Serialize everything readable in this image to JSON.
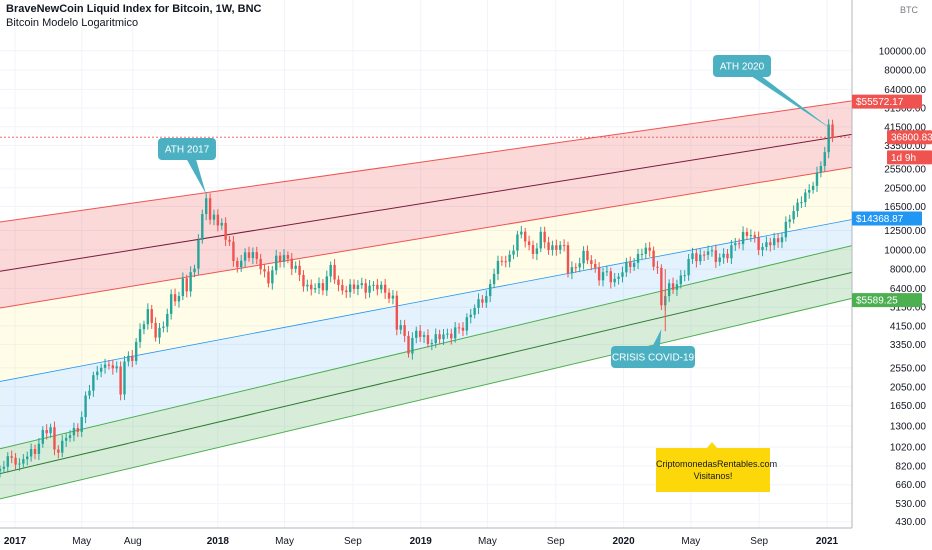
{
  "header": {
    "title": "BraveNewCoin Liquid Index for Bitcoin, 1W, BNC",
    "indicator": "Bitcoin Modelo Logaritmico",
    "currency": "BTC"
  },
  "chart_data": {
    "type": "candlestick",
    "title": "BraveNewCoin Liquid Index for Bitcoin, 1W, BNC",
    "scale": "log",
    "ylim": [
      400,
      180000
    ],
    "xlim": [
      "2016-12-05",
      "2021-02-15"
    ],
    "y_ticks": [
      100000,
      80000,
      64000,
      51500,
      41500,
      33500,
      25500,
      20500,
      16500,
      12500,
      10000,
      8000,
      6400,
      5150,
      4150,
      3350,
      2550,
      2050,
      1650,
      1300,
      1020,
      820,
      660,
      530,
      430
    ],
    "y_tick_labels": [
      "100000.00",
      "80000.00",
      "64000.00",
      "51500.00",
      "41500.00",
      "33500.00",
      "25500.00",
      "20500.00",
      "16500.00",
      "12500.00",
      "10000.00",
      "8000.00",
      "6400.00",
      "5150.00",
      "4150.00",
      "3350.00",
      "2550.00",
      "2050.00",
      "1650.00",
      "1300.00",
      "1020.00",
      "820.00",
      "660.00",
      "530.00",
      "430.00"
    ],
    "x_ticks": [
      {
        "label": "2017",
        "date": "2017-01-01",
        "major": true
      },
      {
        "label": "May",
        "date": "2017-05-01",
        "major": false
      },
      {
        "label": "Aug",
        "date": "2017-08-01",
        "major": false
      },
      {
        "label": "2018",
        "date": "2018-01-01",
        "major": true
      },
      {
        "label": "May",
        "date": "2018-05-01",
        "major": false
      },
      {
        "label": "Sep",
        "date": "2018-09-01",
        "major": false
      },
      {
        "label": "2019",
        "date": "2019-01-01",
        "major": true
      },
      {
        "label": "May",
        "date": "2019-05-01",
        "major": false
      },
      {
        "label": "Sep",
        "date": "2019-09-01",
        "major": false
      },
      {
        "label": "2020",
        "date": "2020-01-01",
        "major": true
      },
      {
        "label": "May",
        "date": "2020-05-01",
        "major": false
      },
      {
        "label": "Sep",
        "date": "2020-09-01",
        "major": false
      },
      {
        "label": "2021",
        "date": "2021-01-01",
        "major": true
      }
    ],
    "candles": [
      [
        "2016-12-05",
        760
      ],
      [
        "2016-12-19",
        890
      ],
      [
        "2017-01-02",
        900
      ],
      [
        "2017-01-09",
        820
      ],
      [
        "2017-01-23",
        920
      ],
      [
        "2017-02-06",
        1000
      ],
      [
        "2017-02-20",
        1180
      ],
      [
        "2017-03-06",
        1250
      ],
      [
        "2017-03-13",
        1000
      ],
      [
        "2017-03-27",
        1050
      ],
      [
        "2017-04-10",
        1180
      ],
      [
        "2017-04-24",
        1300
      ],
      [
        "2017-05-01",
        1450
      ],
      [
        "2017-05-08",
        1750
      ],
      [
        "2017-05-15",
        2000
      ],
      [
        "2017-05-22",
        2300
      ],
      [
        "2017-06-05",
        2700
      ],
      [
        "2017-06-12",
        2500
      ],
      [
        "2017-06-19",
        2600
      ],
      [
        "2017-07-03",
        2550
      ],
      [
        "2017-07-10",
        2000
      ],
      [
        "2017-07-17",
        2700
      ],
      [
        "2017-07-31",
        2850
      ],
      [
        "2017-08-07",
        3400
      ],
      [
        "2017-08-14",
        4100
      ],
      [
        "2017-08-28",
        4700
      ],
      [
        "2017-09-04",
        4300
      ],
      [
        "2017-09-11",
        3700
      ],
      [
        "2017-09-25",
        4350
      ],
      [
        "2017-10-02",
        4600
      ],
      [
        "2017-10-09",
        5700
      ],
      [
        "2017-10-23",
        5800
      ],
      [
        "2017-10-30",
        7400
      ],
      [
        "2017-11-06",
        6300
      ],
      [
        "2017-11-20",
        8200
      ],
      [
        "2017-11-27",
        11500
      ],
      [
        "2017-12-04",
        15000
      ],
      [
        "2017-12-11",
        19000
      ],
      [
        "2017-12-18",
        13500
      ],
      [
        "2017-12-25",
        14500
      ],
      [
        "2018-01-08",
        13500
      ],
      [
        "2018-01-15",
        11500
      ],
      [
        "2018-01-22",
        11000
      ],
      [
        "2018-01-29",
        8200
      ],
      [
        "2018-02-05",
        8500
      ],
      [
        "2018-02-19",
        9600
      ],
      [
        "2018-03-05",
        9200
      ],
      [
        "2018-03-19",
        8500
      ],
      [
        "2018-04-02",
        6900
      ],
      [
        "2018-04-16",
        8800
      ],
      [
        "2018-04-30",
        9600
      ],
      [
        "2018-05-14",
        8200
      ],
      [
        "2018-05-28",
        7500
      ],
      [
        "2018-06-11",
        6500
      ],
      [
        "2018-06-25",
        6300
      ],
      [
        "2018-07-09",
        6700
      ],
      [
        "2018-07-23",
        8200
      ],
      [
        "2018-08-06",
        6300
      ],
      [
        "2018-08-20",
        6500
      ],
      [
        "2018-09-03",
        6400
      ],
      [
        "2018-09-17",
        6600
      ],
      [
        "2018-10-01",
        6550
      ],
      [
        "2018-10-15",
        6400
      ],
      [
        "2018-10-29",
        6350
      ],
      [
        "2018-11-12",
        5600
      ],
      [
        "2018-11-19",
        4000
      ],
      [
        "2018-11-26",
        4100
      ],
      [
        "2018-12-10",
        3250
      ],
      [
        "2018-12-24",
        3800
      ],
      [
        "2019-01-07",
        3600
      ],
      [
        "2019-01-21",
        3500
      ],
      [
        "2019-02-04",
        3600
      ],
      [
        "2019-02-18",
        3800
      ],
      [
        "2019-03-04",
        3900
      ],
      [
        "2019-03-18",
        4000
      ],
      [
        "2019-04-01",
        5000
      ],
      [
        "2019-04-15",
        5300
      ],
      [
        "2019-04-29",
        5800
      ],
      [
        "2019-05-13",
        8000
      ],
      [
        "2019-05-27",
        8600
      ],
      [
        "2019-06-10",
        9300
      ],
      [
        "2019-06-24",
        11800
      ],
      [
        "2019-07-08",
        11400
      ],
      [
        "2019-07-22",
        9700
      ],
      [
        "2019-08-05",
        11500
      ],
      [
        "2019-08-19",
        10300
      ],
      [
        "2019-09-02",
        10500
      ],
      [
        "2019-09-16",
        10000
      ],
      [
        "2019-09-23",
        8000
      ],
      [
        "2019-10-07",
        8300
      ],
      [
        "2019-10-21",
        9200
      ],
      [
        "2019-11-04",
        8800
      ],
      [
        "2019-11-18",
        7300
      ],
      [
        "2019-12-02",
        7500
      ],
      [
        "2019-12-16",
        7100
      ],
      [
        "2020-01-06",
        8100
      ],
      [
        "2020-01-20",
        8900
      ],
      [
        "2020-02-03",
        9800
      ],
      [
        "2020-02-17",
        9700
      ],
      [
        "2020-03-02",
        8000
      ],
      [
        "2020-03-09",
        5300
      ],
      [
        "2020-03-23",
        6400
      ],
      [
        "2020-04-06",
        6900
      ],
      [
        "2020-04-20",
        7600
      ],
      [
        "2020-05-04",
        9600
      ],
      [
        "2020-05-18",
        9200
      ],
      [
        "2020-06-01",
        9700
      ],
      [
        "2020-06-15",
        9300
      ],
      [
        "2020-07-06",
        9200
      ],
      [
        "2020-07-20",
        11000
      ],
      [
        "2020-08-03",
        11800
      ],
      [
        "2020-08-17",
        11700
      ],
      [
        "2020-09-07",
        10300
      ],
      [
        "2020-09-21",
        10700
      ],
      [
        "2020-10-05",
        11300
      ],
      [
        "2020-10-19",
        13100
      ],
      [
        "2020-11-02",
        15500
      ],
      [
        "2020-11-16",
        18700
      ],
      [
        "2020-11-30",
        19200
      ],
      [
        "2020-12-14",
        23800
      ],
      [
        "2020-12-28",
        32000
      ],
      [
        "2021-01-04",
        40000
      ],
      [
        "2021-01-11",
        36800
      ]
    ],
    "channel_bands": {
      "anchor_dates": [
        "2016-12-05",
        "2021-02-15"
      ],
      "lines": [
        {
          "name": "upper",
          "values": [
            13800,
            56000
          ]
        },
        {
          "name": "upper_mid",
          "values": [
            7800,
            38000
          ]
        },
        {
          "name": "red_bottom",
          "values": [
            5100,
            26000
          ]
        },
        {
          "name": "blue_top",
          "values": [
            2180,
            14200
          ]
        },
        {
          "name": "blue_bottom",
          "values": [
            1000,
            10500
          ]
        },
        {
          "name": "green_mid",
          "values": [
            750,
            7700
          ]
        },
        {
          "name": "green_bottom",
          "values": [
            560,
            5700
          ]
        }
      ]
    },
    "price_tags": [
      {
        "label": "55572.17",
        "value": 55572,
        "color": "#ef5350"
      },
      {
        "label": "36800.83",
        "value": 36800,
        "color": "#ef5350"
      },
      {
        "label": "1d 9h",
        "value": 33500,
        "color": "#ef5350"
      },
      {
        "label": "14368.87",
        "value": 14368,
        "color": "#2196f3"
      },
      {
        "label": "5589.25",
        "value": 5589,
        "color": "#4caf50"
      }
    ],
    "annotations": [
      {
        "label": "ATH 2017",
        "date": "2017-12-11",
        "value": 19000
      },
      {
        "label": "ATH 2020",
        "date": "2021-01-11",
        "value": 40000
      },
      {
        "label": "CRISIS COVID-19",
        "date": "2020-03-09",
        "value": 4000
      }
    ]
  },
  "note": {
    "line1": "CriptomonedasRentables.com",
    "line2": "Visitanos!"
  }
}
